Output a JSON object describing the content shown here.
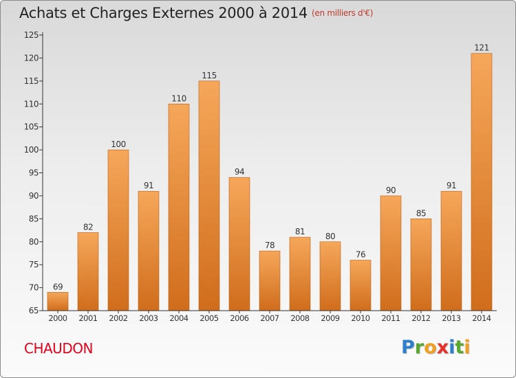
{
  "header": {
    "title": "Achats et Charges Externes 2000 à 2014",
    "subtitle": "(en milliers d'€)"
  },
  "footer": {
    "commune": "CHAUDON",
    "logo_letters": [
      "P",
      "r",
      "o",
      "x",
      "i",
      "t",
      "i"
    ],
    "logo_colors": [
      "#2f7fd0",
      "#58a830",
      "#f0a020",
      "#e8302a",
      "#2f7fd0",
      "#58a830",
      "#f0a020"
    ]
  },
  "colors": {
    "bar_light": "#f6a75a",
    "bar_dark": "#d06d1c",
    "axis": "#333333"
  },
  "chart_data": {
    "type": "bar",
    "title": "Achats et Charges Externes 2000 à 2014",
    "subtitle": "(en milliers d'€)",
    "categories": [
      "2000",
      "2001",
      "2002",
      "2003",
      "2004",
      "2005",
      "2006",
      "2007",
      "2008",
      "2009",
      "2010",
      "2011",
      "2012",
      "2013",
      "2014"
    ],
    "values": [
      69,
      82,
      100,
      91,
      110,
      115,
      94,
      78,
      81,
      80,
      76,
      90,
      85,
      91,
      121
    ],
    "ylim": [
      65,
      125
    ],
    "yticks": [
      65,
      70,
      75,
      80,
      85,
      90,
      95,
      100,
      105,
      110,
      115,
      120,
      125
    ],
    "grid": false,
    "data_labels": true
  }
}
